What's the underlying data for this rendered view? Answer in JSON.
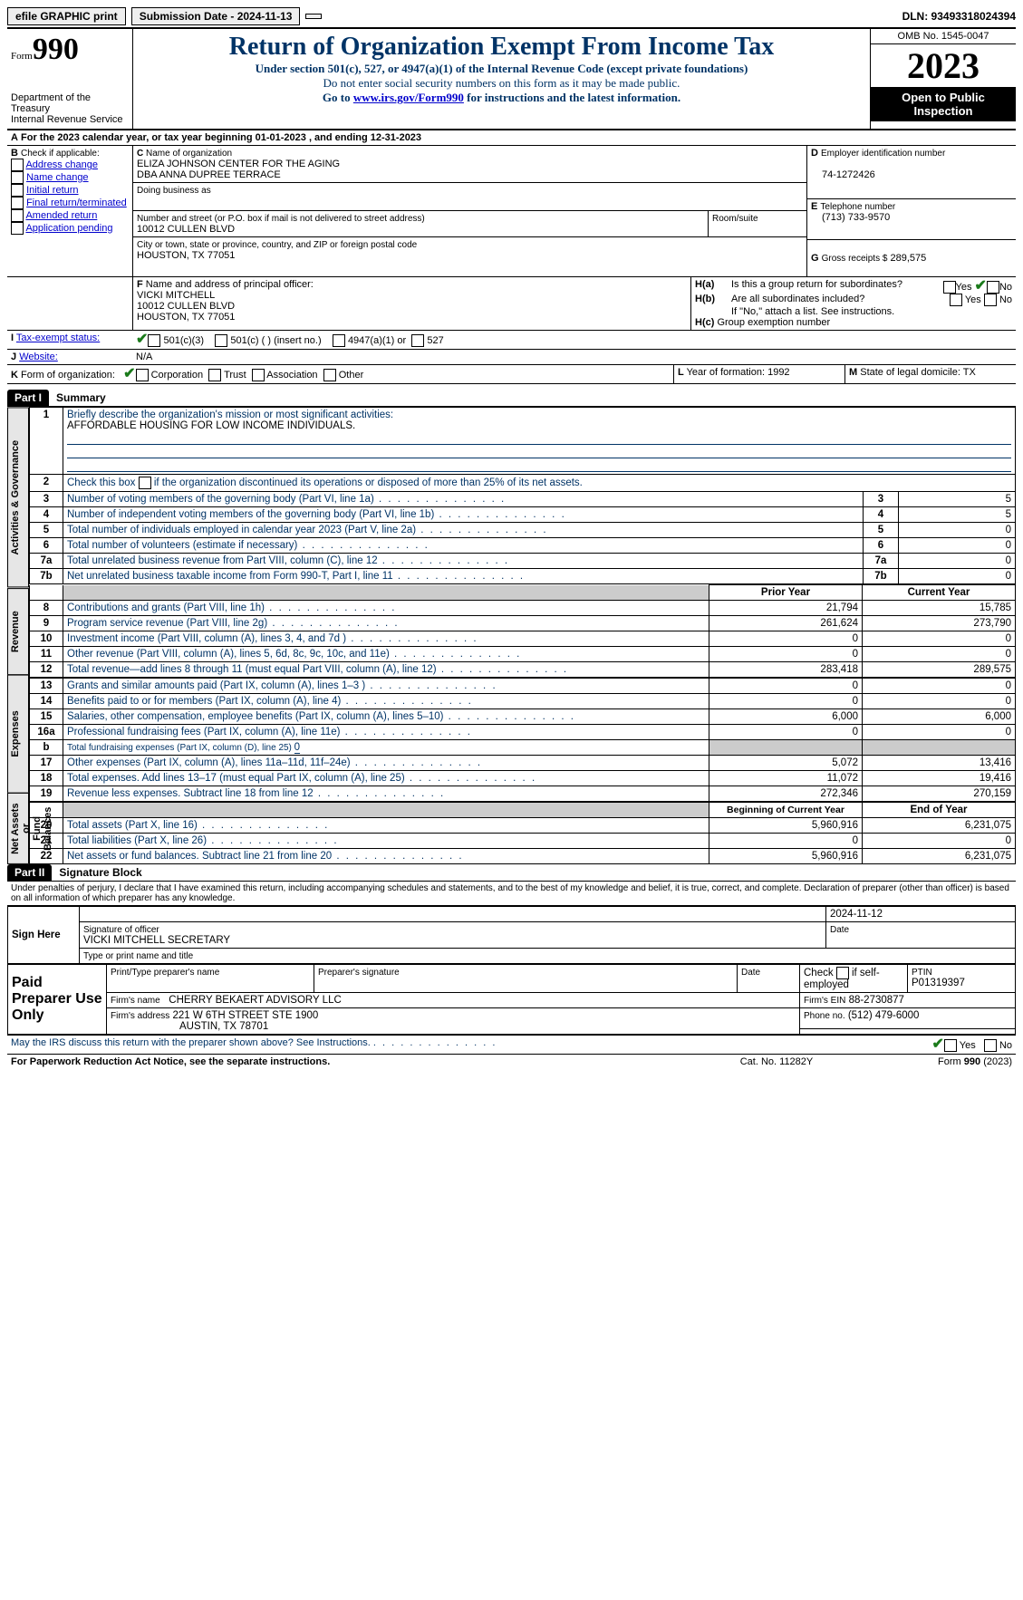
{
  "topbar": {
    "efile": "efile GRAPHIC print",
    "submission_label": "Submission Date - 2024-11-13",
    "dln_label": "DLN: 93493318024394"
  },
  "header": {
    "form_word": "Form",
    "form_number": "990",
    "title": "Return of Organization Exempt From Income Tax",
    "subtitle": "Under section 501(c), 527, or 4947(a)(1) of the Internal Revenue Code (except private foundations)",
    "note1": "Do not enter social security numbers on this form as it may be made public.",
    "note2_pre": "Go to ",
    "note2_link": "www.irs.gov/Form990",
    "note2_post": " for instructions and the latest information.",
    "dept": "Department of the Treasury\nInternal Revenue Service",
    "omb": "OMB No. 1545-0047",
    "year": "2023",
    "open": "Open to Public Inspection"
  },
  "A": {
    "text": "For the 2023 calendar year, or tax year beginning 01-01-2023   , and ending 12-31-2023"
  },
  "B": {
    "label": "Check if applicable:",
    "opts": [
      "Address change",
      "Name change",
      "Initial return",
      "Final return/terminated",
      "Amended return",
      "Application pending"
    ]
  },
  "C": {
    "name_lbl": "Name of organization",
    "name1": "ELIZA JOHNSON CENTER FOR THE AGING",
    "name2": "DBA ANNA DUPREE TERRACE",
    "dba_lbl": "Doing business as",
    "street_lbl": "Number and street (or P.O. box if mail is not delivered to street address)",
    "street": "10012 CULLEN BLVD",
    "room_lbl": "Room/suite",
    "city_lbl": "City or town, state or province, country, and ZIP or foreign postal code",
    "city": "HOUSTON, TX  77051"
  },
  "D": {
    "lbl": "Employer identification number",
    "val": "74-1272426"
  },
  "E": {
    "lbl": "Telephone number",
    "val": "(713) 733-9570"
  },
  "G": {
    "lbl": "Gross receipts $",
    "val": "289,575"
  },
  "F": {
    "lbl": "Name and address of principal officer:",
    "name": "VICKI MITCHELL",
    "street": "10012 CULLEN BLVD",
    "city": "HOUSTON, TX  77051"
  },
  "H": {
    "a": "Is this a group return for subordinates?",
    "b": "Are all subordinates included?",
    "b_note": "If \"No,\" attach a list. See instructions.",
    "c": "Group exemption number",
    "yes": "Yes",
    "no": "No"
  },
  "I": {
    "lbl": "Tax-exempt status:",
    "o1": "501(c)(3)",
    "o2": "501(c) (  ) (insert no.)",
    "o3": "4947(a)(1) or",
    "o4": "527"
  },
  "J": {
    "lbl": "Website:",
    "val": "N/A"
  },
  "K": {
    "lbl": "Form of organization:",
    "o1": "Corporation",
    "o2": "Trust",
    "o3": "Association",
    "o4": "Other"
  },
  "L": {
    "lbl": "Year of formation:",
    "val": "1992"
  },
  "M": {
    "lbl": "State of legal domicile:",
    "val": "TX"
  },
  "part1": {
    "header": "Part I",
    "title": "Summary",
    "l1_lbl": "Briefly describe the organization's mission or most significant activities:",
    "l1_val": "AFFORDABLE HOUSING FOR LOW INCOME INDIVIDUALS.",
    "l2": "Check this box      if the organization discontinued its operations or disposed of more than 25% of its net assets.",
    "gov": [
      {
        "n": "3",
        "d": "Number of voting members of the governing body (Part VI, line 1a)",
        "v": "5"
      },
      {
        "n": "4",
        "d": "Number of independent voting members of the governing body (Part VI, line 1b)",
        "v": "5"
      },
      {
        "n": "5",
        "d": "Total number of individuals employed in calendar year 2023 (Part V, line 2a)",
        "v": "0"
      },
      {
        "n": "6",
        "d": "Total number of volunteers (estimate if necessary)",
        "v": "0"
      },
      {
        "n": "7a",
        "d": "Total unrelated business revenue from Part VIII, column (C), line 12",
        "v": "0"
      },
      {
        "n": "7b",
        "d": "Net unrelated business taxable income from Form 990-T, Part I, line 11",
        "v": "0"
      }
    ],
    "prior_hdr": "Prior Year",
    "curr_hdr": "Current Year",
    "rev": [
      {
        "n": "8",
        "d": "Contributions and grants (Part VIII, line 1h)",
        "p": "21,794",
        "c": "15,785"
      },
      {
        "n": "9",
        "d": "Program service revenue (Part VIII, line 2g)",
        "p": "261,624",
        "c": "273,790"
      },
      {
        "n": "10",
        "d": "Investment income (Part VIII, column (A), lines 3, 4, and 7d )",
        "p": "0",
        "c": "0"
      },
      {
        "n": "11",
        "d": "Other revenue (Part VIII, column (A), lines 5, 6d, 8c, 9c, 10c, and 11e)",
        "p": "0",
        "c": "0"
      },
      {
        "n": "12",
        "d": "Total revenue—add lines 8 through 11 (must equal Part VIII, column (A), line 12)",
        "p": "283,418",
        "c": "289,575"
      }
    ],
    "exp": [
      {
        "n": "13",
        "d": "Grants and similar amounts paid (Part IX, column (A), lines 1–3 )",
        "p": "0",
        "c": "0"
      },
      {
        "n": "14",
        "d": "Benefits paid to or for members (Part IX, column (A), line 4)",
        "p": "0",
        "c": "0"
      },
      {
        "n": "15",
        "d": "Salaries, other compensation, employee benefits (Part IX, column (A), lines 5–10)",
        "p": "6,000",
        "c": "6,000"
      },
      {
        "n": "16a",
        "d": "Professional fundraising fees (Part IX, column (A), line 11e)",
        "p": "0",
        "c": "0"
      }
    ],
    "l16b_pre": "Total fundraising expenses (Part IX, column (D), line 25) ",
    "l16b_val": "0",
    "exp2": [
      {
        "n": "17",
        "d": "Other expenses (Part IX, column (A), lines 11a–11d, 11f–24e)",
        "p": "5,072",
        "c": "13,416"
      },
      {
        "n": "18",
        "d": "Total expenses. Add lines 13–17 (must equal Part IX, column (A), line 25)",
        "p": "11,072",
        "c": "19,416"
      },
      {
        "n": "19",
        "d": "Revenue less expenses. Subtract line 18 from line 12",
        "p": "272,346",
        "c": "270,159"
      }
    ],
    "boy": "Beginning of Current Year",
    "eoy": "End of Year",
    "net": [
      {
        "n": "20",
        "d": "Total assets (Part X, line 16)",
        "p": "5,960,916",
        "c": "6,231,075"
      },
      {
        "n": "21",
        "d": "Total liabilities (Part X, line 26)",
        "p": "0",
        "c": "0"
      },
      {
        "n": "22",
        "d": "Net assets or fund balances. Subtract line 21 from line 20",
        "p": "5,960,916",
        "c": "6,231,075"
      }
    ],
    "side": {
      "gov": "Activities & Governance",
      "rev": "Revenue",
      "exp": "Expenses",
      "net": "Net Assets or\nFund Balances"
    }
  },
  "part2": {
    "header": "Part II",
    "title": "Signature Block",
    "perjury": "Under penalties of perjury, I declare that I have examined this return, including accompanying schedules and statements, and to the best of my knowledge and belief, it is true, correct, and complete. Declaration of preparer (other than officer) is based on all information of which preparer has any knowledge.",
    "sign_here": "Sign Here",
    "sig_date": "2024-11-12",
    "sig_lbl": "Signature of officer",
    "sig_name": "VICKI MITCHELL  SECRETARY",
    "sig_type_lbl": "Type or print name and title",
    "date_lbl": "Date",
    "paid": "Paid Preparer Use Only",
    "prep_name_lbl": "Print/Type preparer's name",
    "prep_sig_lbl": "Preparer's signature",
    "check_if": "Check       if self-employed",
    "ptin_lbl": "PTIN",
    "ptin": "P01319397",
    "firm_name_lbl": "Firm's name",
    "firm_name": "CHERRY BEKAERT ADVISORY LLC",
    "firm_ein_lbl": "Firm's EIN",
    "firm_ein": "88-2730877",
    "firm_addr_lbl": "Firm's address",
    "firm_addr1": "221 W 6TH STREET STE 1900",
    "firm_addr2": "AUSTIN, TX  78701",
    "phone_lbl": "Phone no.",
    "phone": "(512) 479-6000",
    "discuss": "May the IRS discuss this return with the preparer shown above? See Instructions.",
    "yes": "Yes",
    "no": "No"
  },
  "footer": {
    "left": "For Paperwork Reduction Act Notice, see the separate instructions.",
    "mid": "Cat. No. 11282Y",
    "right_pre": "Form ",
    "right_form": "990",
    "right_post": " (2023)"
  }
}
